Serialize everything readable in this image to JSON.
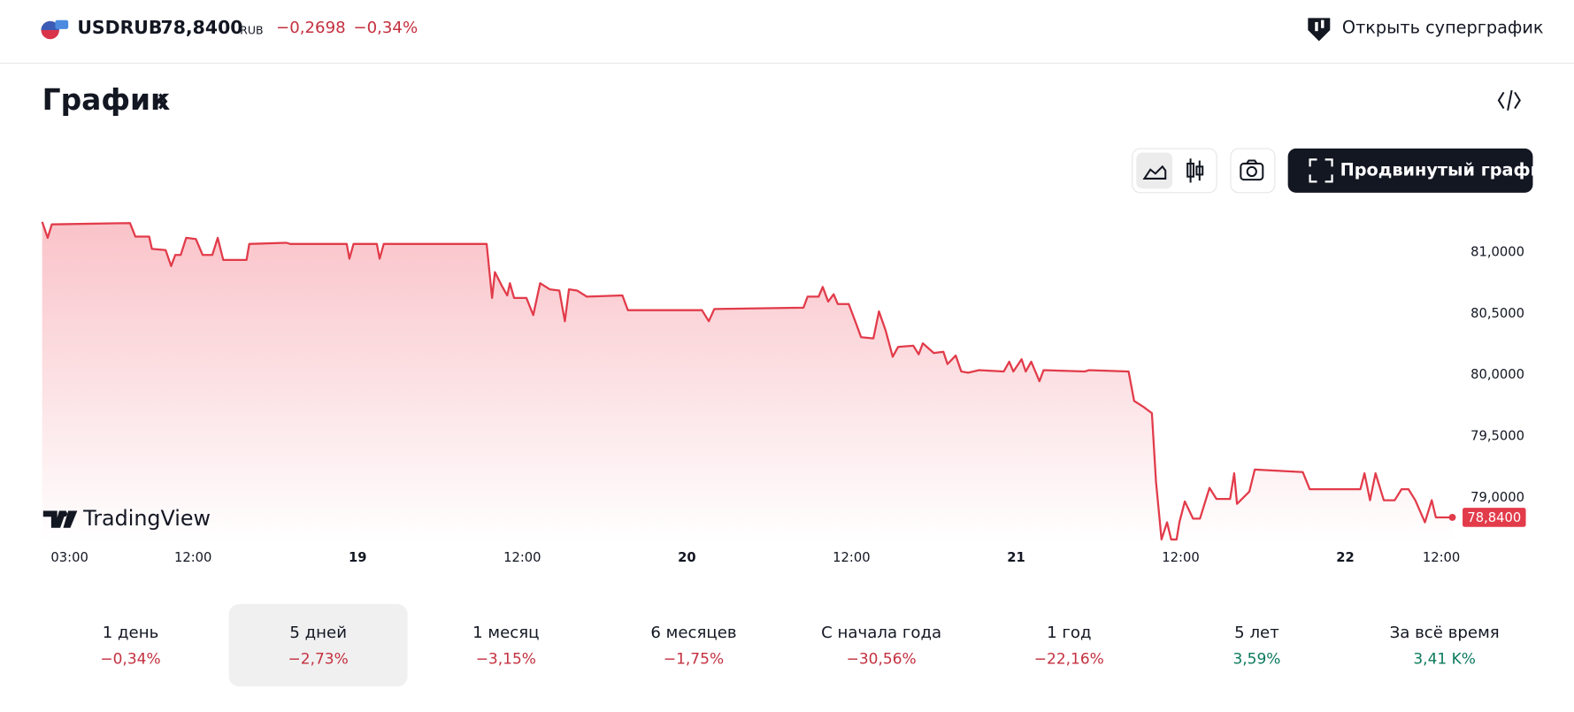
{
  "header": {
    "symbol": "USDRUB",
    "price": "78,8400",
    "currency": "RUB",
    "change": "−0,2698",
    "change_pct": "−0,34%",
    "open_button": "Открыть суперграфик"
  },
  "section_title": "График",
  "advanced_button": "Продвинутый график",
  "watermark": "TradingView",
  "chart_data": {
    "type": "line",
    "color": "#e23b4a",
    "x": [
      1.0,
      1.4,
      1.7,
      7.4,
      7.8,
      8.8,
      9.0,
      10.0,
      10.4,
      10.7,
      11.1,
      11.5,
      12.2,
      12.7,
      13.4,
      13.8,
      14.2,
      15.9,
      16.1,
      18.8,
      19.1,
      23.2,
      23.4,
      23.7,
      25.4,
      25.6,
      25.9,
      33.4,
      33.8,
      34.0,
      34.5,
      34.9,
      35.1,
      35.4,
      36.3,
      36.8,
      37.3,
      38.0,
      38.7,
      39.1,
      39.4,
      40.0,
      40.7,
      43.3,
      43.7,
      49.1,
      49.6,
      50.0,
      56.5,
      56.8,
      57.6,
      57.9,
      58.3,
      58.7,
      59.0,
      59.8,
      60.3,
      60.7,
      61.6,
      62.0,
      62.5,
      63.0,
      63.4,
      64.5,
      64.9,
      65.2,
      66.0,
      66.7,
      67.0,
      67.6,
      68.0,
      68.5,
      69.3,
      71.1,
      71.5,
      71.8,
      72.4,
      72.7,
      73.1,
      73.7,
      74.0,
      77.0,
      77.3,
      80.2,
      80.6,
      81.3,
      81.9,
      82.2,
      82.6,
      83.0,
      83.3,
      83.7,
      83.9,
      84.3,
      84.9,
      85.4,
      86.1,
      86.6,
      87.6,
      87.9,
      88.1,
      89.0,
      89.4,
      92.9,
      93.4,
      97.1,
      97.4,
      97.8,
      98.2,
      98.8,
      99.6,
      100.1,
      100.6,
      101.1,
      101.8,
      102.3,
      102.6,
      103.8
    ],
    "values": [
      81.25,
      81.12,
      81.23,
      81.24,
      81.13,
      81.13,
      81.03,
      81.02,
      80.89,
      80.98,
      80.98,
      81.12,
      81.11,
      80.98,
      80.98,
      81.12,
      80.94,
      80.94,
      81.07,
      81.08,
      81.07,
      81.07,
      80.95,
      81.07,
      81.07,
      80.95,
      81.07,
      81.07,
      80.63,
      80.84,
      80.73,
      80.65,
      80.75,
      80.63,
      80.63,
      80.49,
      80.75,
      80.7,
      80.69,
      80.44,
      80.7,
      80.69,
      80.64,
      80.65,
      80.53,
      80.53,
      80.44,
      80.54,
      80.55,
      80.64,
      80.64,
      80.72,
      80.6,
      80.66,
      80.58,
      80.58,
      80.43,
      80.31,
      80.3,
      80.52,
      80.36,
      80.15,
      80.23,
      80.24,
      80.17,
      80.26,
      80.18,
      80.19,
      80.09,
      80.16,
      80.03,
      80.02,
      80.04,
      80.03,
      80.11,
      80.03,
      80.13,
      80.03,
      80.11,
      79.95,
      80.04,
      80.03,
      80.04,
      80.03,
      79.79,
      79.74,
      79.69,
      79.13,
      78.66,
      78.8,
      78.66,
      78.66,
      78.8,
      78.97,
      78.83,
      78.83,
      79.08,
      78.99,
      78.99,
      79.2,
      78.95,
      79.05,
      79.23,
      79.21,
      79.07,
      79.07,
      79.2,
      78.98,
      79.2,
      78.98,
      78.98,
      79.07,
      79.07,
      78.98,
      78.8,
      78.98,
      78.84,
      78.84
    ],
    "value_labels": [
      null,
      null,
      null,
      null,
      null,
      null,
      null,
      null,
      null,
      null,
      null,
      null,
      null,
      null,
      null,
      null,
      null,
      null,
      null,
      null,
      null,
      null,
      null,
      null,
      null,
      null,
      null,
      null,
      null,
      null,
      null,
      null,
      null,
      null,
      null,
      null,
      null,
      null,
      null,
      null,
      null,
      null,
      null,
      null,
      null,
      null,
      null,
      null,
      null,
      null,
      null,
      null,
      null,
      null,
      null,
      null,
      null,
      null,
      null,
      null,
      null,
      null,
      null,
      null,
      null,
      null,
      null,
      null,
      null,
      null,
      null,
      null,
      null,
      null,
      null,
      null,
      null,
      null,
      null,
      null,
      null,
      null,
      null,
      null,
      null,
      null,
      null,
      null,
      null,
      null,
      null,
      null,
      null,
      null,
      null,
      null,
      null,
      null,
      null,
      null,
      null,
      null,
      null,
      null,
      null,
      null,
      null,
      null,
      null,
      null,
      null,
      null,
      null,
      null,
      null,
      null,
      null,
      "78,8400"
    ],
    "xlim": [
      1,
      104.4
    ],
    "xticks": [
      {
        "value": 3,
        "label": "03:00"
      },
      {
        "value": 12,
        "label": "12:00"
      },
      {
        "value": 24,
        "label": "19"
      },
      {
        "value": 36,
        "label": "12:00"
      },
      {
        "value": 48,
        "label": "20"
      },
      {
        "value": 60,
        "label": "12:00"
      },
      {
        "value": 72,
        "label": "21"
      },
      {
        "value": 84,
        "label": "12:00"
      },
      {
        "value": 96,
        "label": "22"
      },
      {
        "value": 103,
        "label": "12:00"
      }
    ],
    "ylim": [
      78.64,
      81.3
    ],
    "yticks": [
      {
        "value": 81,
        "label": "81,0000"
      },
      {
        "value": 80.5,
        "label": "80,5000"
      },
      {
        "value": 80,
        "label": "80,0000"
      },
      {
        "value": 79.5,
        "label": "79,5000"
      },
      {
        "value": 79,
        "label": "79,0000"
      }
    ],
    "grid": false
  },
  "periods": {
    "selected": 1,
    "items": [
      {
        "label": "1 день",
        "change": "−0,34%"
      },
      {
        "label": "5 дней",
        "change": "−2,73%"
      },
      {
        "label": "1 месяц",
        "change": "−3,15%"
      },
      {
        "label": "6 месяцев",
        "change": "−1,75%"
      },
      {
        "label": "С начала года",
        "change": "−30,56%"
      },
      {
        "label": "1 год",
        "change": "−22,16%"
      },
      {
        "label": "5 лет",
        "change": "3,59%"
      },
      {
        "label": "За всё время",
        "change": "3,41 K%"
      }
    ]
  }
}
